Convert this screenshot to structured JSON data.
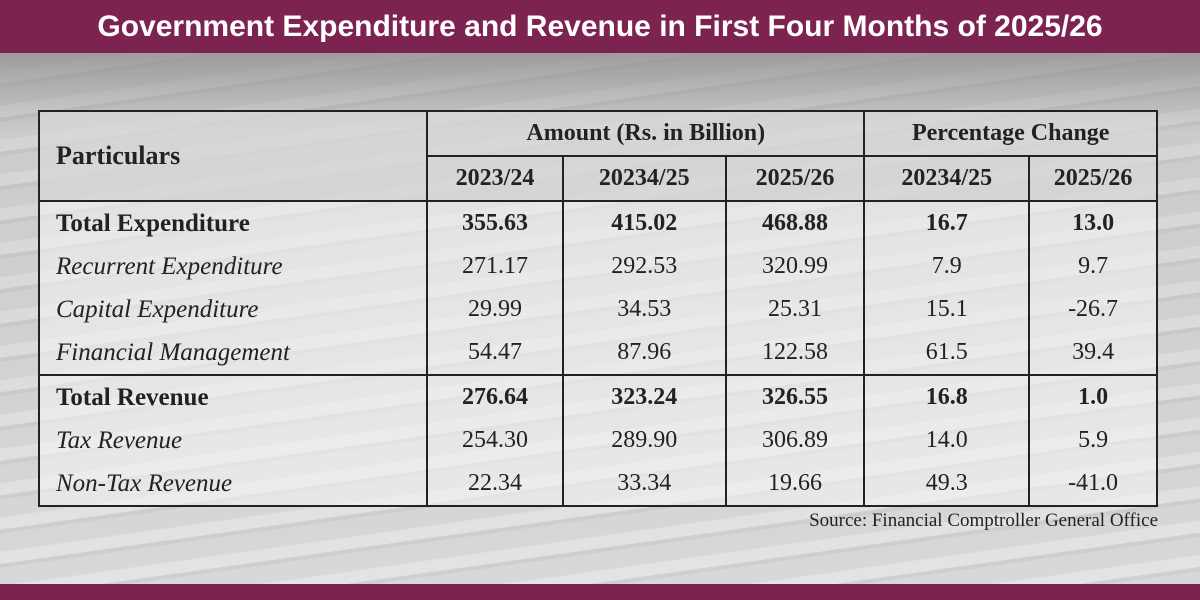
{
  "title": "Government Expenditure and Revenue in First Four Months of 2025/26",
  "table": {
    "col_particulars": "Particulars",
    "group_amount": "Amount (Rs. in Billion)",
    "group_pct": "Percentage Change",
    "years_amount": [
      "2023/24",
      "20234/25",
      "2025/26"
    ],
    "years_pct": [
      "20234/25",
      "2025/26"
    ],
    "rows": [
      {
        "label": "Total Expenditure",
        "bold": true,
        "values": [
          "355.63",
          "415.02",
          "468.88",
          "16.7",
          "13.0"
        ]
      },
      {
        "label": "Recurrent Expenditure",
        "bold": false,
        "values": [
          "271.17",
          "292.53",
          "320.99",
          "7.9",
          "9.7"
        ]
      },
      {
        "label": "Capital Expenditure",
        "bold": false,
        "values": [
          "29.99",
          "34.53",
          "25.31",
          "15.1",
          "-26.7"
        ]
      },
      {
        "label": "Financial Management",
        "bold": false,
        "values": [
          "54.47",
          "87.96",
          "122.58",
          "61.5",
          "39.4"
        ]
      },
      {
        "label": "Total Revenue",
        "bold": true,
        "values": [
          "276.64",
          "323.24",
          "326.55",
          "16.8",
          "1.0"
        ]
      },
      {
        "label": "Tax Revenue",
        "bold": false,
        "values": [
          "254.30",
          "289.90",
          "306.89",
          "14.0",
          "5.9"
        ]
      },
      {
        "label": "Non-Tax Revenue",
        "bold": false,
        "values": [
          "22.34",
          "33.34",
          "19.66",
          "49.3",
          "-41.0"
        ]
      }
    ]
  },
  "source": "Source: Financial Comptroller General Office",
  "colors": {
    "band": "#7d234f"
  }
}
